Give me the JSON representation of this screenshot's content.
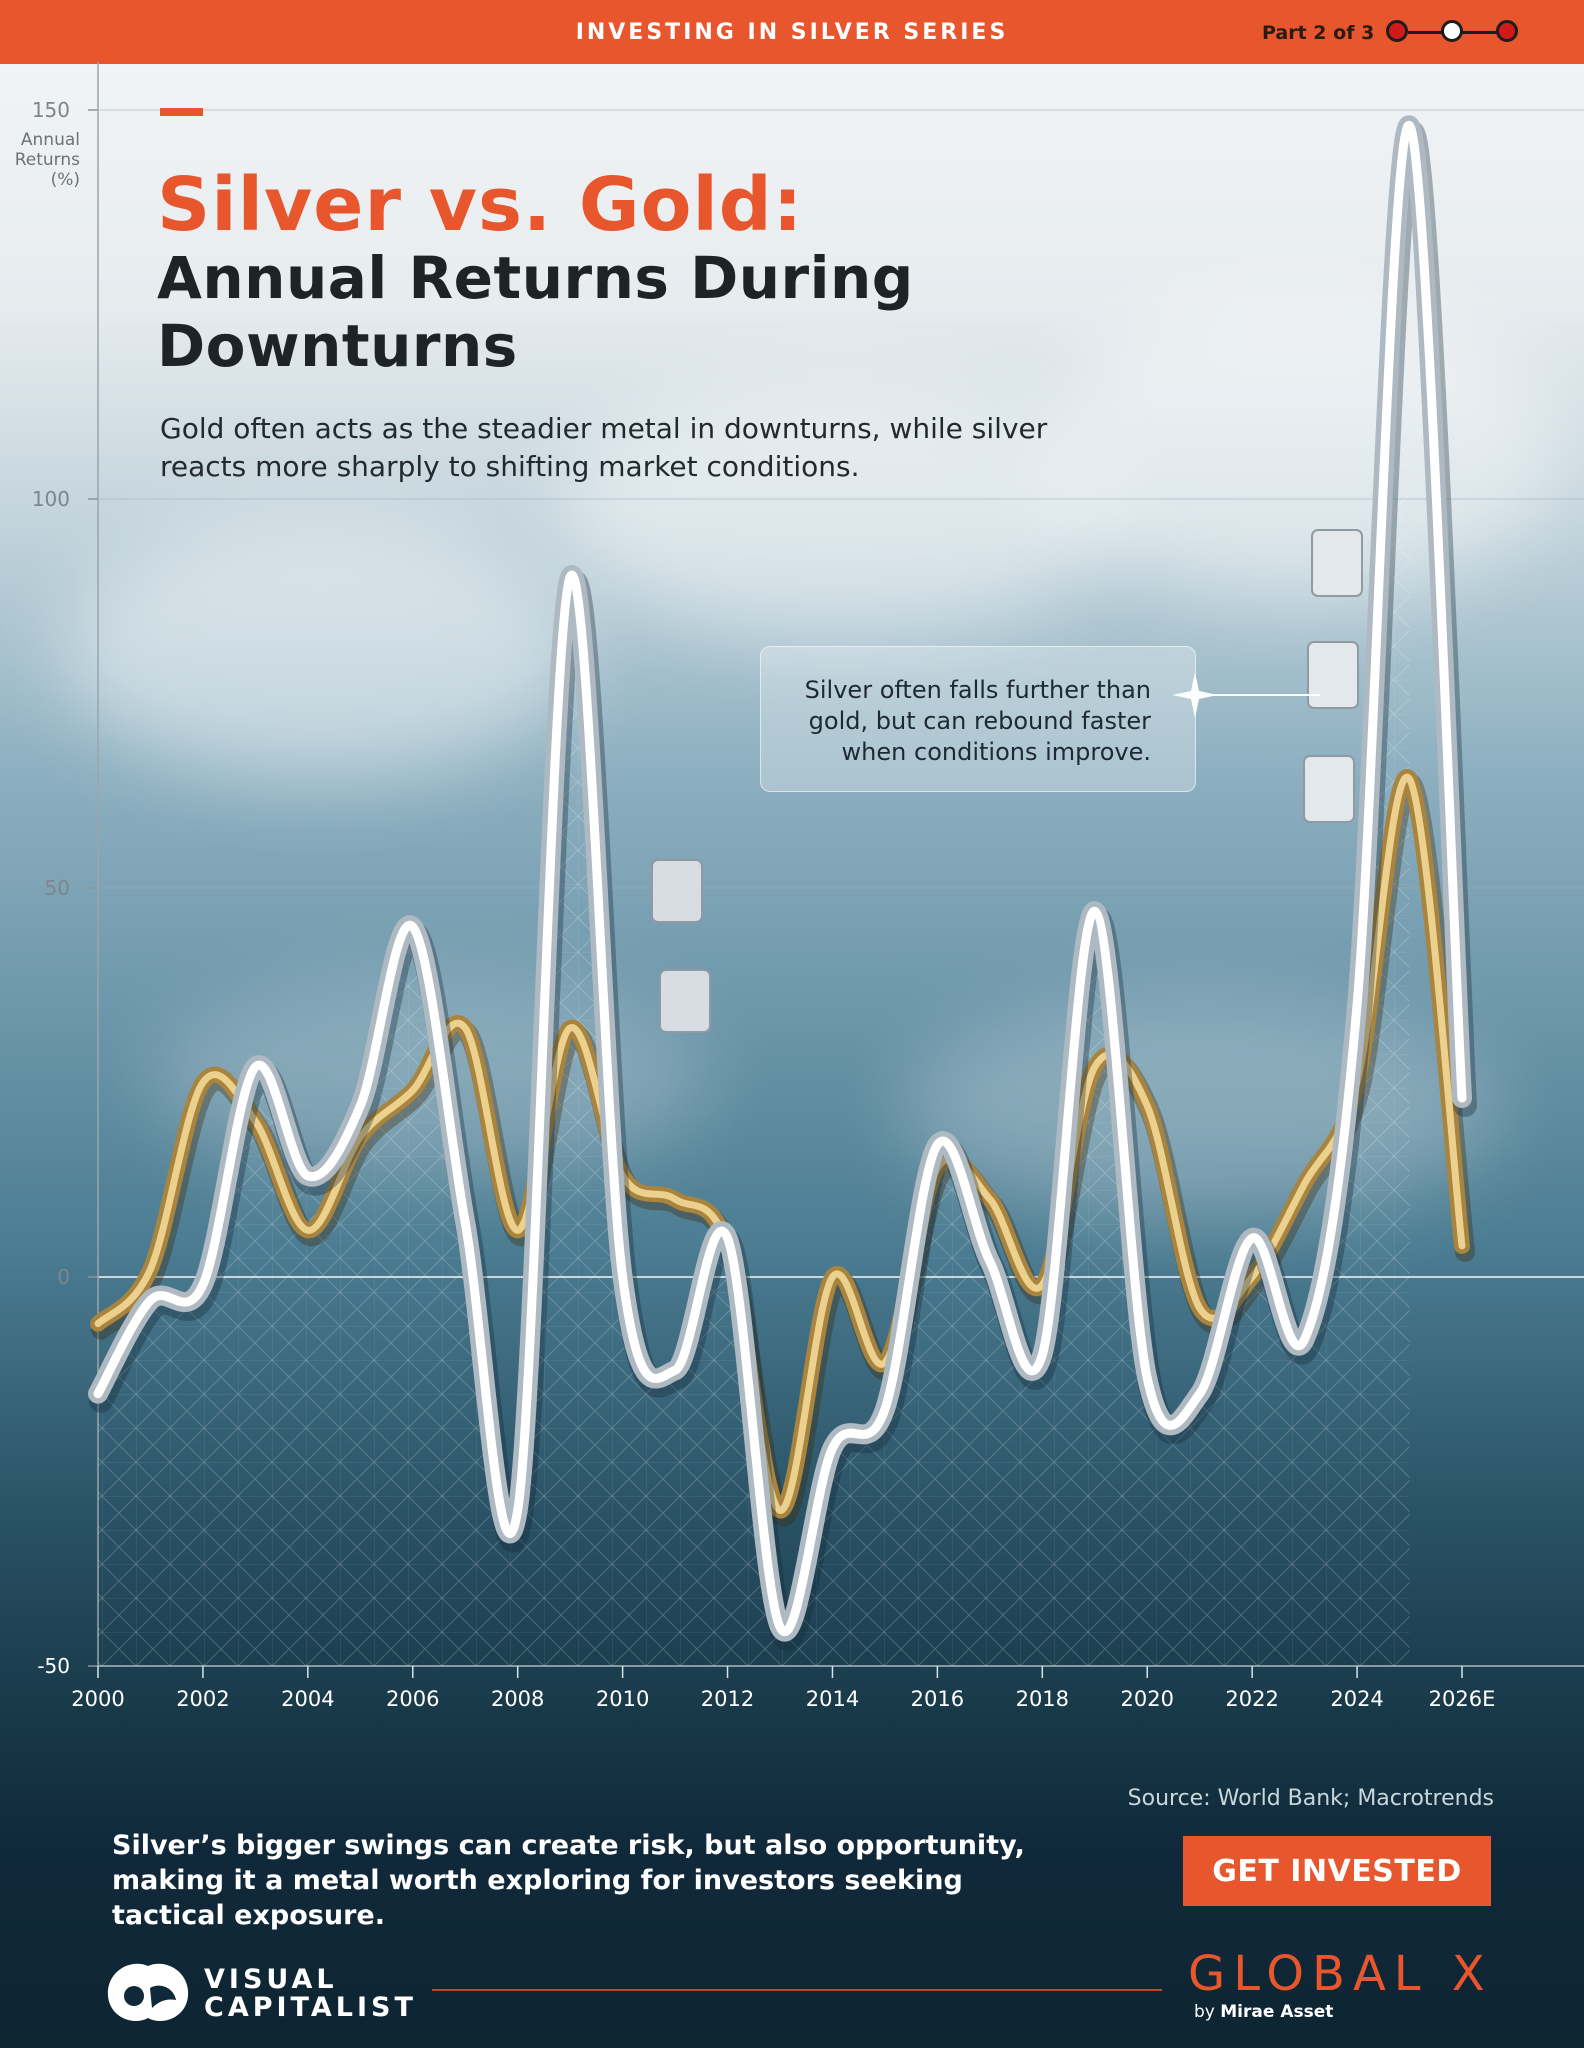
{
  "header": {
    "series_title": "INVESTING IN SILVER SERIES",
    "part_label": "Part 2 of 3"
  },
  "title": {
    "main": "Silver vs. Gold:",
    "sub": "Annual Returns During Downturns",
    "description": "Gold often acts as the steadier metal in downturns, while silver reacts more sharply to shifting market conditions."
  },
  "axis": {
    "y_label": "Annual Returns (%)"
  },
  "callout": {
    "text": "Silver often falls further than gold, but can rebound faster when conditions improve."
  },
  "footer": {
    "source": "Source: World Bank; Macrotrends",
    "message": "Silver’s bigger swings can create risk, but also opportunity, making it a metal worth exploring for investors seeking tactical exposure.",
    "cta": "GET INVESTED",
    "vc_logo_line1": "VISUAL",
    "vc_logo_line2": "CAPITALIST",
    "brand": "GLOBAL X",
    "brand_sub_prefix": "by",
    "brand_sub_name": "Mirae Asset"
  },
  "colors": {
    "accent": "#e8562d",
    "silver": "#eef2f5",
    "gold": "#c9a458"
  },
  "chart_data": {
    "type": "line",
    "title": "Silver vs. Gold: Annual Returns During Downturns",
    "xlabel": "",
    "ylabel": "Annual Returns (%)",
    "x": [
      2000,
      2001,
      2002,
      2003,
      2004,
      2005,
      2006,
      2007,
      2008,
      2009,
      2010,
      2011,
      2012,
      2013,
      2014,
      2015,
      2016,
      2017,
      2018,
      2019,
      2020,
      2021,
      2022,
      2023,
      2024,
      2025,
      2026
    ],
    "x_tick_labels": [
      "2000",
      "2002",
      "2004",
      "2006",
      "2008",
      "2010",
      "2012",
      "2014",
      "2016",
      "2018",
      "2020",
      "2022",
      "2024",
      "2026E"
    ],
    "y_ticks": [
      150,
      100,
      50,
      0,
      -50
    ],
    "ylim": [
      -50,
      150
    ],
    "xlim": [
      2000,
      2026
    ],
    "series": [
      {
        "name": "Silver",
        "values": [
          -15,
          -3,
          -1,
          27,
          13,
          22,
          45,
          7,
          -30,
          90,
          0,
          -12,
          5,
          -45,
          -22,
          -17,
          17,
          2,
          -10,
          47,
          -13,
          -15,
          5,
          -8,
          35,
          148,
          23
        ]
      },
      {
        "name": "Gold",
        "values": [
          -6,
          1,
          25,
          20,
          6,
          18,
          24,
          32,
          6,
          32,
          13,
          10,
          4,
          -30,
          0,
          -11,
          14,
          10,
          -1,
          27,
          22,
          -4,
          0,
          12,
          25,
          64,
          4
        ]
      }
    ],
    "grid": true,
    "legend": "none"
  }
}
